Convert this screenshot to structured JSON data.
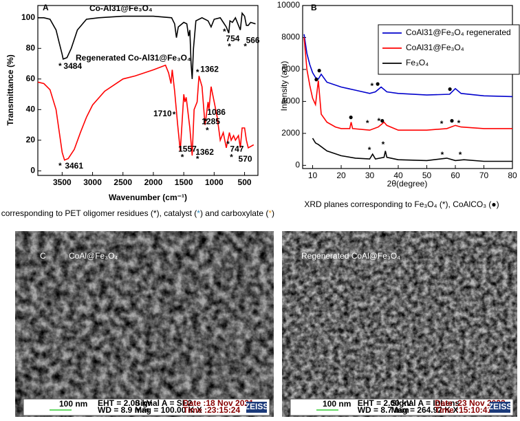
{
  "chart_data": [
    {
      "type": "line",
      "panel_label": "A",
      "x_label": "Wavenumber (cm⁻¹)",
      "y_label": "Transmittance (%)",
      "xlim": [
        3900,
        280
      ],
      "ylim": [
        -3,
        108
      ],
      "xticks": [
        3500,
        3000,
        2500,
        2000,
        1500,
        1000,
        500
      ],
      "yticks": [
        0,
        20,
        40,
        60,
        80,
        100
      ],
      "series": [
        {
          "name": "Co-Al31@Fe₃O₄",
          "color": "#000000",
          "x": [
            3900,
            3800,
            3700,
            3600,
            3550,
            3500,
            3484,
            3420,
            3350,
            3250,
            3100,
            2900,
            2500,
            2000,
            1700,
            1650,
            1620,
            1590,
            1500,
            1450,
            1420,
            1400,
            1380,
            1362,
            1340,
            1300,
            1200,
            1100,
            1050,
            1000,
            900,
            850,
            800,
            760,
            740,
            700,
            650,
            600,
            570,
            540,
            500,
            470,
            440,
            400,
            320
          ],
          "values": [
            100,
            100,
            99,
            92,
            84,
            76,
            73,
            74,
            80,
            92,
            99,
            100,
            101,
            101,
            100,
            96,
            87,
            94,
            97,
            96,
            88,
            92,
            70,
            60,
            80,
            98,
            100,
            98,
            94,
            99,
            100,
            97,
            94,
            90,
            98,
            97,
            100,
            95,
            92,
            103,
            101,
            95,
            95,
            97,
            96
          ]
        },
        {
          "name": "Regenerated Co-Al31@Fe₃O₄",
          "color": "#ff0000",
          "x": [
            3900,
            3800,
            3700,
            3600,
            3500,
            3461,
            3400,
            3300,
            3200,
            3100,
            3000,
            2800,
            2500,
            2300,
            2000,
            1800,
            1750,
            1710,
            1690,
            1650,
            1600,
            1557,
            1530,
            1500,
            1480,
            1460,
            1400,
            1362,
            1330,
            1280,
            1250,
            1200,
            1150,
            1100,
            1086,
            1050,
            1000,
            950,
            900,
            850,
            800,
            750,
            720,
            680,
            650,
            600,
            570,
            540,
            500,
            470,
            440,
            350
          ],
          "values": [
            58,
            57,
            53,
            40,
            12,
            7,
            8,
            14,
            25,
            35,
            43,
            52,
            60,
            62,
            66,
            69,
            64,
            57,
            66,
            52,
            30,
            13,
            30,
            50,
            45,
            48,
            28,
            10,
            40,
            45,
            62,
            55,
            30,
            45,
            40,
            55,
            45,
            35,
            20,
            25,
            15,
            25,
            20,
            23,
            20,
            23,
            15,
            28,
            28,
            20,
            15,
            17
          ]
        }
      ],
      "annotations": [
        {
          "text": "3484",
          "x": 3477,
          "y": 68
        },
        {
          "text": "1362",
          "x": 1227,
          "y": 66
        },
        {
          "text": "754",
          "x": 807,
          "y": 86
        },
        {
          "text": "566",
          "x": 477,
          "y": 85
        },
        {
          "text": "3461",
          "x": 3455,
          "y": 3
        },
        {
          "text": "1710",
          "x": 2000,
          "y": 37
        },
        {
          "text": "1557",
          "x": 1591,
          "y": 14
        },
        {
          "text": "1362",
          "x": 1307,
          "y": 12
        },
        {
          "text": "1086",
          "x": 1114,
          "y": 38
        },
        {
          "text": "1285",
          "x": 1205,
          "y": 32
        },
        {
          "text": "747",
          "x": 739,
          "y": 14
        },
        {
          "text": "570",
          "x": 602,
          "y": 7.4
        }
      ],
      "markers": [
        {
          "text": "*",
          "color": "#2e8bc0",
          "x": 3534,
          "y": 68
        },
        {
          "text": "*",
          "color": "#2e8bc0",
          "x": 1273,
          "y": 64
        },
        {
          "text": "*",
          "color": "#2e8bc0",
          "x": 830,
          "y": 90.5
        },
        {
          "text": "*",
          "color": "#2e8bc0",
          "x": 750,
          "y": 81
        },
        {
          "text": "*",
          "color": "#2e8bc0",
          "x": 489,
          "y": 81
        },
        {
          "text": "*",
          "color": "#2e8bc0",
          "x": 3534,
          "y": 3
        },
        {
          "text": "*",
          "color": "#000000",
          "x": 1659,
          "y": 36.5
        },
        {
          "text": "*",
          "color": "#f0a830",
          "x": 1523,
          "y": 8.6
        },
        {
          "text": "*",
          "color": "#2e8bc0",
          "x": 1273,
          "y": 7.4
        },
        {
          "text": "*",
          "color": "#000000",
          "x": 1135,
          "y": 32
        },
        {
          "text": "*",
          "color": "#000000",
          "x": 1114,
          "y": 26
        },
        {
          "text": "*",
          "color": "#2e8bc0",
          "x": 773,
          "y": 17
        },
        {
          "text": "*",
          "color": "#2e8bc0",
          "x": 716,
          "y": 8.6
        }
      ],
      "caption": [
        {
          "text": "IR peaks corresponding to PET oligomer residues (",
          "color": "#000000"
        },
        {
          "text": "*",
          "color": "#000000"
        },
        {
          "text": "), catalyst (",
          "color": "#000000"
        },
        {
          "text": "*",
          "color": "#2e8bc0"
        },
        {
          "text": ") and  carboxylate (",
          "color": "#000000"
        },
        {
          "text": "*",
          "color": "#f0a830"
        },
        {
          "text": ")",
          "color": "#000000"
        }
      ]
    },
    {
      "type": "line",
      "panel_label": "B",
      "x_label": "2θ(degree)",
      "y_label": "Intensity (a.u)",
      "legend": "upper right",
      "xlim": [
        6.5,
        80
      ],
      "ylim": [
        -200,
        10000
      ],
      "xticks": [
        10,
        20,
        30,
        40,
        50,
        60,
        70,
        80
      ],
      "yticks": [
        0,
        2000,
        4000,
        6000,
        8000,
        10000
      ],
      "series": [
        {
          "name": "CoAl31@Fe₃O₄ regenerated",
          "color": "#0000cc",
          "x": [
            7,
            8,
            9,
            10,
            11,
            12,
            13,
            15,
            20,
            25,
            30,
            32,
            34,
            36,
            40,
            50,
            58,
            60,
            62,
            70,
            80
          ],
          "values": [
            8200,
            7000,
            6300,
            5800,
            5500,
            5400,
            5700,
            5200,
            4900,
            4700,
            4500,
            4600,
            4900,
            4600,
            4500,
            4400,
            4450,
            4800,
            4500,
            4350,
            4300
          ]
        },
        {
          "name": "CoAl31@Fe₃O₄",
          "color": "#ff0000",
          "x": [
            7,
            8,
            9,
            10,
            11,
            12,
            13,
            15,
            18,
            20,
            23,
            23.5,
            24,
            30,
            33,
            35,
            36,
            40,
            50,
            57,
            60,
            62,
            70,
            80
          ],
          "values": [
            8000,
            6000,
            5000,
            4200,
            3800,
            5300,
            3200,
            2700,
            2400,
            2300,
            2300,
            2700,
            2300,
            2200,
            2400,
            2700,
            2500,
            2200,
            2200,
            2300,
            2500,
            2400,
            2300,
            2300
          ]
        },
        {
          "name": "Fe₃O₄",
          "color": "#000000",
          "x": [
            10,
            11,
            12,
            15,
            20,
            25,
            30,
            31,
            32,
            35,
            35.5,
            36,
            40,
            50,
            57,
            60,
            63,
            70,
            80
          ],
          "values": [
            1700,
            1400,
            1300,
            900,
            600,
            450,
            400,
            700,
            400,
            500,
            900,
            500,
            350,
            300,
            450,
            300,
            350,
            250,
            250
          ]
        }
      ],
      "markers": [
        {
          "text": "●",
          "color": "#000000",
          "x": 12.3,
          "y": 5911
        },
        {
          "text": "●",
          "color": "#000000",
          "x": 11.3,
          "y": 5350
        },
        {
          "text": "*",
          "color": "#000000",
          "x": 30.8,
          "y": 4920
        },
        {
          "text": "●",
          "color": "#000000",
          "x": 32.8,
          "y": 5090
        },
        {
          "text": "●",
          "color": "#000000",
          "x": 58.1,
          "y": 4750
        },
        {
          "text": "●",
          "color": "#000000",
          "x": 23.4,
          "y": 2985
        },
        {
          "text": "*",
          "color": "#000000",
          "x": 29.2,
          "y": 2600
        },
        {
          "text": "*",
          "color": "#000000",
          "x": 33.2,
          "y": 2730
        },
        {
          "text": "●",
          "color": "#000000",
          "x": 34.4,
          "y": 2770
        },
        {
          "text": "*",
          "color": "#000000",
          "x": 55.2,
          "y": 2555
        },
        {
          "text": "●",
          "color": "#000000",
          "x": 58.8,
          "y": 2770
        },
        {
          "text": "*",
          "color": "#000000",
          "x": 61.2,
          "y": 2600
        },
        {
          "text": "*",
          "color": "#000000",
          "x": 29.9,
          "y": 920
        },
        {
          "text": "*",
          "color": "#000000",
          "x": 34.7,
          "y": 1270
        },
        {
          "text": "*",
          "color": "#000000",
          "x": 55.4,
          "y": 620
        },
        {
          "text": "*",
          "color": "#000000",
          "x": 61.7,
          "y": 620
        }
      ],
      "caption": [
        {
          "text": "XRD planes corresponding to Fe₃O₄ (*),  CoAlCO₃ (●)",
          "color": "#000000"
        }
      ]
    }
  ],
  "sem_panel_label": "C",
  "sem_panels": [
    {
      "label": "CoAl@Fe₃O₄",
      "info": [
        "100 nm",
        "EHT = 2.00 kV",
        "WD = 8.9 mm",
        "Signal A = SE2",
        "Mag = 100.00 K X",
        "Date :18 Nov 2021",
        "Time :23:15:24",
        "ZEISS"
      ]
    },
    {
      "label": "Regenerated CoAl@Fe₃O₄",
      "info": [
        "100 nm",
        "EHT = 2.00 kV",
        "WD = 8.7 mm",
        "Signal A = InLens",
        "Mag = 264.92 K X",
        "Date :23 Nov 2022",
        "Time :15:10:41",
        "ZEISS"
      ]
    }
  ]
}
